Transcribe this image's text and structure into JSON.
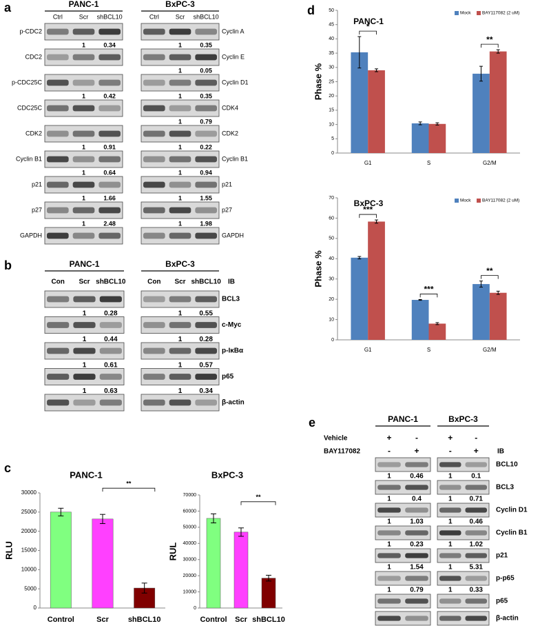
{
  "panel_labels": [
    "a",
    "b",
    "c",
    "d",
    "e"
  ],
  "blots": {
    "a": {
      "cell_lines": [
        "PANC-1",
        "BxPC-3"
      ],
      "lanes": [
        [
          "Ctrl",
          "Scr",
          "shBCL10"
        ],
        [
          "Ctrl",
          "Scr",
          "shBCL10"
        ]
      ],
      "blocks": [
        {
          "rows": [
            {
              "label": "p-CDC2",
              "quant": [
                1,
                0.34
              ]
            },
            {
              "label": "CDC2"
            },
            {
              "label": "p-CDC25C",
              "quant": [
                1,
                0.42
              ]
            },
            {
              "label": "CDC25C"
            },
            {
              "label": "CDK2",
              "quant": [
                1,
                0.91
              ]
            },
            {
              "label": "Cyclin B1",
              "quant": [
                1,
                0.64
              ]
            },
            {
              "label": "p21",
              "quant": [
                1,
                1.66
              ]
            },
            {
              "label": "p27",
              "quant": [
                1,
                2.48
              ]
            },
            {
              "label": "GAPDH"
            }
          ]
        },
        {
          "rows": [
            {
              "label": "Cyclin A",
              "quant": [
                1,
                0.35
              ]
            },
            {
              "label": "Cyclin E",
              "quant": [
                1,
                0.05
              ]
            },
            {
              "label": "Cyclin D1",
              "quant": [
                1,
                0.35
              ]
            },
            {
              "label": "CDK4",
              "quant": [
                1,
                0.79
              ]
            },
            {
              "label": "CDK2",
              "quant": [
                1,
                0.22
              ]
            },
            {
              "label": "Cyclin B1",
              "quant": [
                1,
                0.94
              ]
            },
            {
              "label": "p21",
              "quant": [
                1,
                1.55
              ]
            },
            {
              "label": "p27",
              "quant": [
                1,
                1.98
              ]
            },
            {
              "label": "GAPDH"
            }
          ]
        }
      ]
    },
    "b": {
      "cell_lines": [
        "PANC-1",
        "BxPC-3"
      ],
      "lanes": [
        [
          "Con",
          "Scr",
          "shBCL10"
        ],
        [
          "Con",
          "Scr",
          "shBCL10"
        ]
      ],
      "ib": "IB",
      "rows": [
        {
          "label": "BCL3",
          "quant": [
            [
              1,
              0.28
            ],
            [
              1,
              0.55
            ]
          ]
        },
        {
          "label": "c-Myc",
          "quant": [
            [
              1,
              0.44
            ],
            [
              1,
              0.28
            ]
          ]
        },
        {
          "label": "p-IκBα",
          "quant": [
            [
              1,
              0.61
            ],
            [
              1,
              0.57
            ]
          ]
        },
        {
          "label": "p65",
          "quant": [
            [
              1,
              0.63
            ],
            [
              1,
              0.34
            ]
          ]
        },
        {
          "label": "β-actin"
        }
      ]
    },
    "e": {
      "cell_lines": [
        "PANC-1",
        "BxPC-3"
      ],
      "treatments": [
        {
          "label": "Vehicle",
          "signs": [
            "+",
            "-",
            "+",
            "-"
          ]
        },
        {
          "label": "BAY117082",
          "signs": [
            "-",
            "+",
            "-",
            "+"
          ]
        }
      ],
      "ib": "IB",
      "rows": [
        {
          "label": "BCL10",
          "quant": [
            [
              1,
              0.46
            ],
            [
              1,
              0.1
            ]
          ]
        },
        {
          "label": "BCL3",
          "quant": [
            [
              1,
              0.4
            ],
            [
              1,
              0.71
            ]
          ]
        },
        {
          "label": "Cyclin D1",
          "quant": [
            [
              1,
              1.03
            ],
            [
              1,
              0.46
            ]
          ]
        },
        {
          "label": "Cyclin B1",
          "quant": [
            [
              1,
              0.23
            ],
            [
              1,
              1.02
            ]
          ]
        },
        {
          "label": "p21",
          "quant": [
            [
              1,
              1.54
            ],
            [
              1,
              5.31
            ]
          ]
        },
        {
          "label": "p-p65",
          "quant": [
            [
              1,
              0.79
            ],
            [
              1,
              0.33
            ]
          ]
        },
        {
          "label": "p65"
        },
        {
          "label": "β-actin"
        }
      ]
    }
  },
  "chart_data": [
    {
      "type": "bar",
      "title": "PANC-1",
      "categories": [
        "Control",
        "Scr",
        "shBCL10"
      ],
      "values": [
        25000,
        23200,
        5200
      ],
      "errors": [
        1000,
        1200,
        1300
      ],
      "colors": [
        "#80ff80",
        "#ff40ff",
        "#800000"
      ],
      "y_label": "RLU",
      "ylim": [
        0,
        30000
      ],
      "yticks": [
        0,
        5000,
        10000,
        15000,
        20000,
        25000,
        30000
      ],
      "annotations": [
        {
          "text": "**",
          "categories": [
            1,
            2
          ]
        }
      ]
    },
    {
      "type": "bar",
      "title": "BxPC-3",
      "categories": [
        "Control",
        "Scr",
        "shBCL10"
      ],
      "values": [
        55500,
        47000,
        18500
      ],
      "errors": [
        2800,
        2600,
        1800
      ],
      "colors": [
        "#80ff80",
        "#ff40ff",
        "#800000"
      ],
      "y_label": "RUL",
      "ylim": [
        0,
        70000
      ],
      "yticks": [
        0,
        10000,
        20000,
        30000,
        40000,
        50000,
        60000,
        70000
      ],
      "annotations": [
        {
          "text": "**",
          "categories": [
            1,
            2
          ]
        }
      ]
    },
    {
      "type": "grouped_bar",
      "title": "PANC-1",
      "categories": [
        "G1",
        "S",
        "G2/M"
      ],
      "series": [
        {
          "name": "Mock",
          "color": "#4f81bd",
          "values": [
            35.3,
            10.4,
            27.8
          ],
          "errors": [
            5.5,
            0.5,
            2.6
          ]
        },
        {
          "name": "BAY117082 (2 uM)",
          "color": "#c0504d",
          "values": [
            29,
            10.2,
            35.6
          ],
          "errors": [
            0.5,
            0.4,
            0.6
          ]
        }
      ],
      "y_label": "Phase %",
      "ylim": [
        0,
        50
      ],
      "yticks": [
        0,
        5,
        10,
        15,
        20,
        25,
        30,
        35,
        40,
        45,
        50
      ],
      "legend": "upper right",
      "annotations": [
        {
          "text": "*",
          "category": 0
        },
        {
          "text": "**",
          "category": 2
        }
      ]
    },
    {
      "type": "grouped_bar",
      "title": "BxPC-3",
      "categories": [
        "G1",
        "S",
        "G2/M"
      ],
      "series": [
        {
          "name": "Mock",
          "color": "#4f81bd",
          "values": [
            40.5,
            19.7,
            27.5
          ],
          "errors": [
            0.6,
            0.2,
            1.5
          ]
        },
        {
          "name": "BAY117082 (2 uM)",
          "color": "#c0504d",
          "values": [
            58.3,
            8,
            23.2
          ],
          "errors": [
            0.8,
            0.5,
            0.8
          ]
        }
      ],
      "y_label": "Phase %",
      "ylim": [
        0,
        70
      ],
      "yticks": [
        0,
        10,
        20,
        30,
        40,
        50,
        60,
        70
      ],
      "legend": "upper right",
      "annotations": [
        {
          "text": "***",
          "category": 0
        },
        {
          "text": "***",
          "category": 1
        },
        {
          "text": "**",
          "category": 2
        }
      ]
    }
  ]
}
